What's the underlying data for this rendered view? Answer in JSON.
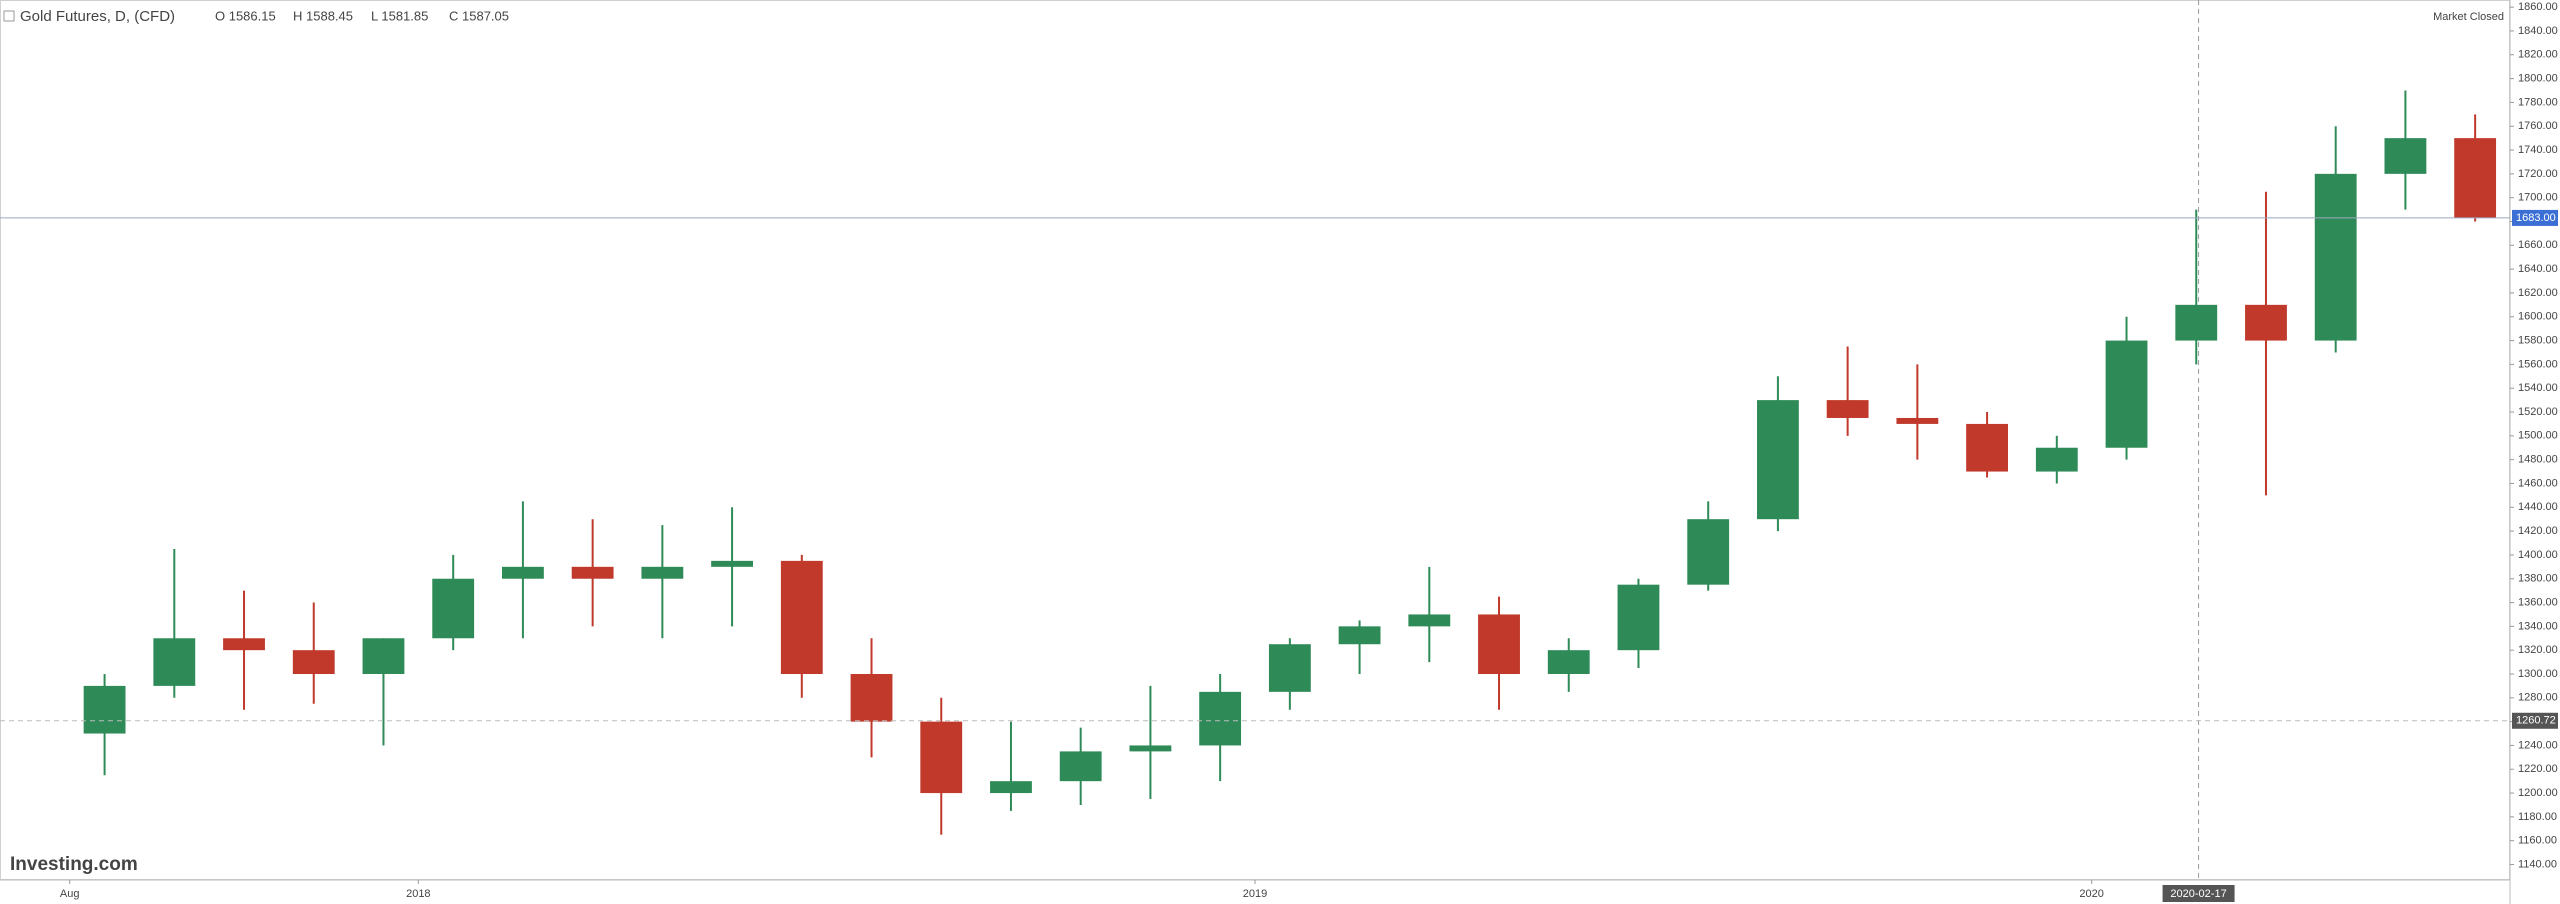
{
  "header": {
    "title": "Gold Futures, D, (CFD)",
    "ohlc": [
      "O 1586.15",
      "H 1588.45",
      "L 1581.85",
      "C 1587.05"
    ],
    "status": "Market Closed"
  },
  "logo": "Investing.com",
  "chart_data": {
    "type": "candlestick",
    "up_color": "#2e8b57",
    "down_color": "#c0392b",
    "x": [
      "2017-08",
      "2017-09",
      "2017-10",
      "2017-11",
      "2017-12",
      "2018-01",
      "2018-02",
      "2018-03",
      "2018-04",
      "2018-05",
      "2018-06",
      "2018-07",
      "2018-08",
      "2018-09",
      "2018-10",
      "2018-11",
      "2018-12",
      "2019-01",
      "2019-02",
      "2019-03",
      "2019-04",
      "2019-05",
      "2019-06",
      "2019-07",
      "2019-08",
      "2019-09",
      "2019-10",
      "2019-11",
      "2019-12",
      "2020-01",
      "2020-02",
      "2020-03",
      "2020-04",
      "2020-05",
      "2020-06"
    ],
    "open": [
      1250,
      1290,
      1330,
      1320,
      1300,
      1330,
      1380,
      1390,
      1380,
      1390,
      1395,
      1300,
      1260,
      1200,
      1210,
      1235,
      1240,
      1285,
      1325,
      1340,
      1350,
      1300,
      1320,
      1375,
      1430,
      1530,
      1515,
      1510,
      1470,
      1490,
      1580,
      1610,
      1580,
      1720,
      1750
    ],
    "high": [
      1300,
      1405,
      1370,
      1360,
      1330,
      1400,
      1445,
      1430,
      1425,
      1440,
      1400,
      1330,
      1280,
      1260,
      1255,
      1290,
      1300,
      1330,
      1345,
      1390,
      1365,
      1330,
      1380,
      1445,
      1550,
      1575,
      1560,
      1520,
      1500,
      1600,
      1690,
      1705,
      1760,
      1790,
      1770
    ],
    "low": [
      1215,
      1280,
      1270,
      1275,
      1240,
      1320,
      1330,
      1340,
      1330,
      1340,
      1280,
      1230,
      1165,
      1185,
      1190,
      1195,
      1210,
      1270,
      1300,
      1310,
      1270,
      1285,
      1305,
      1370,
      1420,
      1500,
      1480,
      1465,
      1460,
      1480,
      1560,
      1450,
      1570,
      1690,
      1680
    ],
    "close": [
      1290,
      1330,
      1320,
      1300,
      1330,
      1380,
      1390,
      1380,
      1390,
      1395,
      1300,
      1260,
      1200,
      1210,
      1235,
      1240,
      1285,
      1325,
      1340,
      1350,
      1300,
      1320,
      1375,
      1430,
      1530,
      1515,
      1510,
      1470,
      1490,
      1580,
      1610,
      1580,
      1720,
      1750,
      1683
    ],
    "xlim": [
      "2017-07",
      "2020-07"
    ],
    "xticks": [
      {
        "value": "2017-08",
        "label": "Aug"
      },
      {
        "value": "2018-01",
        "label": "2018"
      },
      {
        "value": "2019-01",
        "label": "2019"
      },
      {
        "value": "2020-01",
        "label": "2020"
      }
    ],
    "ylim": [
      1127,
      1866
    ],
    "yticks": [
      {
        "value": 1140,
        "label": "1140.00"
      },
      {
        "value": 1160,
        "label": "1160.00"
      },
      {
        "value": 1180,
        "label": "1180.00"
      },
      {
        "value": 1200,
        "label": "1200.00"
      },
      {
        "value": 1220,
        "label": "1220.00"
      },
      {
        "value": 1240,
        "label": "1240.00"
      },
      {
        "value": 1260,
        "label": "1260.00"
      },
      {
        "value": 1280,
        "label": "1280.00"
      },
      {
        "value": 1300,
        "label": "1300.00"
      },
      {
        "value": 1320,
        "label": "1320.00"
      },
      {
        "value": 1340,
        "label": "1340.00"
      },
      {
        "value": 1360,
        "label": "1360.00"
      },
      {
        "value": 1380,
        "label": "1380.00"
      },
      {
        "value": 1400,
        "label": "1400.00"
      },
      {
        "value": 1420,
        "label": "1420.00"
      },
      {
        "value": 1440,
        "label": "1440.00"
      },
      {
        "value": 1460,
        "label": "1460.00"
      },
      {
        "value": 1480,
        "label": "1480.00"
      },
      {
        "value": 1500,
        "label": "1500.00"
      },
      {
        "value": 1520,
        "label": "1520.00"
      },
      {
        "value": 1540,
        "label": "1540.00"
      },
      {
        "value": 1560,
        "label": "1560.00"
      },
      {
        "value": 1580,
        "label": "1580.00"
      },
      {
        "value": 1600,
        "label": "1600.00"
      },
      {
        "value": 1620,
        "label": "1620.00"
      },
      {
        "value": 1640,
        "label": "1640.00"
      },
      {
        "value": 1660,
        "label": "1660.00"
      },
      {
        "value": 1680,
        "label": "1680.00"
      },
      {
        "value": 1700,
        "label": "1700.00"
      },
      {
        "value": 1720,
        "label": "1720.00"
      },
      {
        "value": 1740,
        "label": "1740.00"
      },
      {
        "value": 1760,
        "label": "1760.00"
      },
      {
        "value": 1780,
        "label": "1780.00"
      },
      {
        "value": 1800,
        "label": "1800.00"
      },
      {
        "value": 1820,
        "label": "1820.00"
      },
      {
        "value": 1840,
        "label": "1840.00"
      },
      {
        "value": 1860,
        "label": "1860.00"
      }
    ],
    "price_lines": [
      {
        "value": 1683,
        "label": "1683.00",
        "color": "#3b6fd6",
        "style": "solid"
      },
      {
        "value": 1260.72,
        "label": "1260.72",
        "color": "#555555",
        "style": "dashed"
      }
    ],
    "crosshair": {
      "value": "2020-02-17",
      "label": "2020-02-17"
    }
  }
}
